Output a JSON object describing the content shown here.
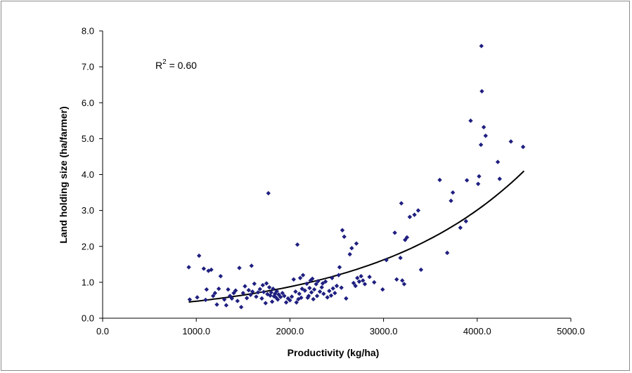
{
  "chart_data": {
    "type": "scatter",
    "xlabel": "Productivity (kg/ha)",
    "ylabel": "Land holding size (ha/farmer)",
    "xlim": [
      0,
      5000
    ],
    "ylim": [
      0,
      8
    ],
    "x_ticks": [
      "0.0",
      "1000.0",
      "2000.0",
      "3000.0",
      "4000.0",
      "5000.0"
    ],
    "y_ticks": [
      "0.0",
      "1.0",
      "2.0",
      "3.0",
      "4.0",
      "5.0",
      "6.0",
      "7.0",
      "8.0"
    ],
    "grid": false,
    "legend": "none",
    "annotation": {
      "text": "R",
      "superscript": "2",
      "value_text": " = 0.60"
    },
    "colors": {
      "points": "#1f1f80",
      "trendline": "#000000",
      "axis": "#000000",
      "border": "#8c8c8c"
    },
    "trendline": {
      "type": "exponential",
      "x_range": [
        920,
        4500
      ],
      "y_start": 0.45,
      "y_end": 4.1
    },
    "series": [
      {
        "points": [
          [
            920,
            1.42
          ],
          [
            930,
            0.52
          ],
          [
            1010,
            0.58
          ],
          [
            1030,
            1.74
          ],
          [
            1080,
            1.38
          ],
          [
            1100,
            0.51
          ],
          [
            1110,
            0.8
          ],
          [
            1130,
            1.32
          ],
          [
            1160,
            1.35
          ],
          [
            1180,
            0.62
          ],
          [
            1200,
            0.7
          ],
          [
            1220,
            0.38
          ],
          [
            1240,
            0.82
          ],
          [
            1260,
            1.17
          ],
          [
            1300,
            0.52
          ],
          [
            1320,
            0.36
          ],
          [
            1340,
            0.8
          ],
          [
            1360,
            0.62
          ],
          [
            1380,
            0.55
          ],
          [
            1400,
            0.7
          ],
          [
            1420,
            0.77
          ],
          [
            1440,
            0.48
          ],
          [
            1460,
            1.4
          ],
          [
            1480,
            0.31
          ],
          [
            1500,
            0.7
          ],
          [
            1520,
            0.89
          ],
          [
            1540,
            0.56
          ],
          [
            1560,
            0.78
          ],
          [
            1580,
            0.65
          ],
          [
            1590,
            1.46
          ],
          [
            1600,
            0.74
          ],
          [
            1620,
            0.96
          ],
          [
            1640,
            0.6
          ],
          [
            1660,
            0.72
          ],
          [
            1680,
            0.81
          ],
          [
            1700,
            0.55
          ],
          [
            1710,
            0.92
          ],
          [
            1720,
            0.73
          ],
          [
            1740,
            0.42
          ],
          [
            1750,
            0.97
          ],
          [
            1760,
            0.67
          ],
          [
            1770,
            3.48
          ],
          [
            1780,
            0.86
          ],
          [
            1790,
            0.63
          ],
          [
            1800,
            0.72
          ],
          [
            1810,
            0.46
          ],
          [
            1820,
            0.82
          ],
          [
            1830,
            0.61
          ],
          [
            1840,
            0.68
          ],
          [
            1850,
            0.58
          ],
          [
            1860,
            0.75
          ],
          [
            1870,
            0.52
          ],
          [
            1880,
            0.66
          ],
          [
            1900,
            0.59
          ],
          [
            1920,
            0.7
          ],
          [
            1940,
            0.62
          ],
          [
            1960,
            0.44
          ],
          [
            1980,
            0.55
          ],
          [
            2000,
            0.5
          ],
          [
            2020,
            0.6
          ],
          [
            2040,
            1.08
          ],
          [
            2060,
            0.74
          ],
          [
            2070,
            0.44
          ],
          [
            2080,
            2.05
          ],
          [
            2090,
            0.53
          ],
          [
            2100,
            0.68
          ],
          [
            2110,
            1.12
          ],
          [
            2120,
            0.57
          ],
          [
            2130,
            0.82
          ],
          [
            2140,
            1.2
          ],
          [
            2160,
            0.77
          ],
          [
            2180,
            0.96
          ],
          [
            2190,
            0.57
          ],
          [
            2200,
            0.62
          ],
          [
            2210,
            0.84
          ],
          [
            2220,
            1.05
          ],
          [
            2230,
            0.72
          ],
          [
            2240,
            1.1
          ],
          [
            2250,
            0.53
          ],
          [
            2260,
            0.8
          ],
          [
            2280,
            0.95
          ],
          [
            2290,
            0.62
          ],
          [
            2300,
            1.03
          ],
          [
            2320,
            0.74
          ],
          [
            2340,
            0.86
          ],
          [
            2350,
            0.97
          ],
          [
            2360,
            0.68
          ],
          [
            2380,
            1.02
          ],
          [
            2400,
            0.58
          ],
          [
            2420,
            0.76
          ],
          [
            2440,
            0.63
          ],
          [
            2450,
            1.12
          ],
          [
            2460,
            0.83
          ],
          [
            2480,
            0.7
          ],
          [
            2500,
            0.9
          ],
          [
            2520,
            1.2
          ],
          [
            2530,
            1.42
          ],
          [
            2550,
            0.85
          ],
          [
            2560,
            2.45
          ],
          [
            2580,
            2.27
          ],
          [
            2600,
            0.55
          ],
          [
            2640,
            1.78
          ],
          [
            2660,
            1.95
          ],
          [
            2680,
            0.98
          ],
          [
            2700,
            0.9
          ],
          [
            2710,
            2.08
          ],
          [
            2720,
            1.12
          ],
          [
            2740,
            1.02
          ],
          [
            2760,
            1.17
          ],
          [
            2780,
            1.05
          ],
          [
            2800,
            0.95
          ],
          [
            2850,
            1.15
          ],
          [
            2900,
            1.0
          ],
          [
            2990,
            0.8
          ],
          [
            3030,
            1.62
          ],
          [
            3120,
            2.38
          ],
          [
            3140,
            1.08
          ],
          [
            3180,
            1.68
          ],
          [
            3190,
            3.2
          ],
          [
            3200,
            1.05
          ],
          [
            3220,
            0.95
          ],
          [
            3230,
            2.18
          ],
          [
            3250,
            2.25
          ],
          [
            3280,
            2.82
          ],
          [
            3330,
            2.88
          ],
          [
            3370,
            3.0
          ],
          [
            3400,
            1.35
          ],
          [
            3600,
            3.85
          ],
          [
            3680,
            1.82
          ],
          [
            3720,
            3.27
          ],
          [
            3740,
            3.5
          ],
          [
            3820,
            2.52
          ],
          [
            3880,
            2.7
          ],
          [
            3890,
            3.84
          ],
          [
            3930,
            5.5
          ],
          [
            4010,
            3.74
          ],
          [
            4020,
            3.95
          ],
          [
            4040,
            4.83
          ],
          [
            4045,
            7.58
          ],
          [
            4050,
            6.32
          ],
          [
            4070,
            5.32
          ],
          [
            4090,
            5.08
          ],
          [
            4220,
            4.35
          ],
          [
            4240,
            3.88
          ],
          [
            4360,
            4.92
          ],
          [
            4490,
            4.77
          ]
        ]
      }
    ]
  }
}
